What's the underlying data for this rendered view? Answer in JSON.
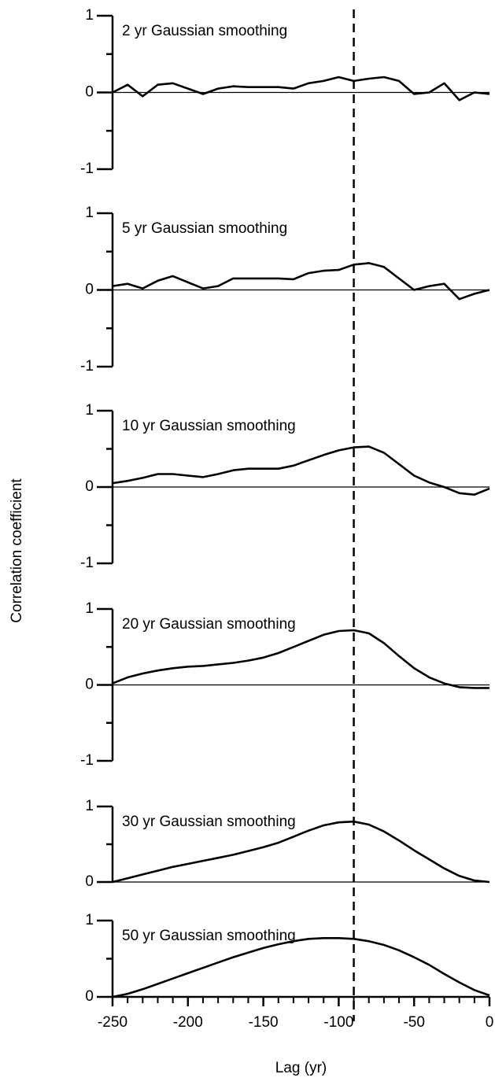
{
  "ylabel": "Correlation coefficient",
  "vline_x": -90,
  "chart_data": [
    {
      "type": "line",
      "title": "2 yr Gaussian smoothing",
      "color": "#000000",
      "x": [
        -250,
        -240,
        -230,
        -220,
        -210,
        -200,
        -190,
        -180,
        -170,
        -160,
        -150,
        -140,
        -130,
        -120,
        -110,
        -100,
        -90,
        -80,
        -70,
        -60,
        -50,
        -40,
        -30,
        -20,
        -10,
        0
      ],
      "values": [
        0,
        0.1,
        -0.05,
        0.1,
        0.12,
        0.05,
        -0.02,
        0.05,
        0.08,
        0.07,
        0.07,
        0.07,
        0.05,
        0.12,
        0.15,
        0.2,
        0.15,
        0.18,
        0.2,
        0.15,
        -0.02,
        0,
        0.12,
        -0.1,
        0,
        -0.02
      ],
      "xlim": [
        -250,
        0
      ],
      "ylim": [
        -1,
        1
      ],
      "yticks": [
        -1,
        0,
        1
      ],
      "yminor": [
        -0.5,
        0.5
      ]
    },
    {
      "type": "line",
      "title": "5 yr Gaussian smoothing",
      "color": "#000000",
      "x": [
        -250,
        -240,
        -230,
        -220,
        -210,
        -200,
        -190,
        -180,
        -170,
        -160,
        -150,
        -140,
        -130,
        -120,
        -110,
        -100,
        -90,
        -80,
        -70,
        -60,
        -50,
        -40,
        -30,
        -20,
        -10,
        0
      ],
      "values": [
        0.05,
        0.08,
        0.02,
        0.12,
        0.18,
        0.1,
        0.02,
        0.05,
        0.15,
        0.15,
        0.15,
        0.15,
        0.14,
        0.22,
        0.25,
        0.26,
        0.33,
        0.35,
        0.3,
        0.15,
        0,
        0.05,
        0.08,
        -0.12,
        -0.05,
        0
      ],
      "xlim": [
        -250,
        0
      ],
      "ylim": [
        -1,
        1
      ],
      "yticks": [
        -1,
        0,
        1
      ],
      "yminor": [
        -0.5,
        0.5
      ]
    },
    {
      "type": "line",
      "title": "10 yr Gaussian smoothing",
      "color": "#000000",
      "x": [
        -250,
        -240,
        -230,
        -220,
        -210,
        -200,
        -190,
        -180,
        -170,
        -160,
        -150,
        -140,
        -130,
        -120,
        -110,
        -100,
        -90,
        -80,
        -70,
        -60,
        -50,
        -40,
        -30,
        -20,
        -10,
        0
      ],
      "values": [
        0.05,
        0.08,
        0.12,
        0.17,
        0.17,
        0.15,
        0.13,
        0.17,
        0.22,
        0.24,
        0.24,
        0.24,
        0.28,
        0.35,
        0.42,
        0.48,
        0.52,
        0.53,
        0.45,
        0.3,
        0.15,
        0.06,
        0,
        -0.08,
        -0.1,
        -0.02
      ],
      "xlim": [
        -250,
        0
      ],
      "ylim": [
        -1,
        1
      ],
      "yticks": [
        -1,
        0,
        1
      ],
      "yminor": [
        -0.5,
        0.5
      ]
    },
    {
      "type": "line",
      "title": "20 yr Gaussian smoothing",
      "color": "#000000",
      "x": [
        -250,
        -240,
        -230,
        -220,
        -210,
        -200,
        -190,
        -180,
        -170,
        -160,
        -150,
        -140,
        -130,
        -120,
        -110,
        -100,
        -90,
        -80,
        -70,
        -60,
        -50,
        -40,
        -30,
        -20,
        -10,
        0
      ],
      "values": [
        0.02,
        0.1,
        0.15,
        0.19,
        0.22,
        0.24,
        0.25,
        0.27,
        0.29,
        0.32,
        0.36,
        0.42,
        0.5,
        0.58,
        0.66,
        0.71,
        0.72,
        0.68,
        0.55,
        0.38,
        0.22,
        0.1,
        0.02,
        -0.03,
        -0.04,
        -0.04
      ],
      "xlim": [
        -250,
        0
      ],
      "ylim": [
        -1,
        1
      ],
      "yticks": [
        -1,
        0,
        1
      ],
      "yminor": [
        -0.5,
        0.5
      ]
    },
    {
      "type": "line",
      "title": "30 yr Gaussian smoothing",
      "color": "#000000",
      "x": [
        -250,
        -240,
        -230,
        -220,
        -210,
        -200,
        -190,
        -180,
        -170,
        -160,
        -150,
        -140,
        -130,
        -120,
        -110,
        -100,
        -90,
        -80,
        -70,
        -60,
        -50,
        -40,
        -30,
        -20,
        -10,
        0
      ],
      "values": [
        0,
        0.05,
        0.1,
        0.15,
        0.2,
        0.24,
        0.28,
        0.32,
        0.36,
        0.41,
        0.46,
        0.52,
        0.6,
        0.68,
        0.75,
        0.79,
        0.8,
        0.76,
        0.67,
        0.55,
        0.42,
        0.3,
        0.18,
        0.08,
        0.02,
        0
      ],
      "xlim": [
        -250,
        0
      ],
      "ylim": [
        0,
        1
      ],
      "yticks": [
        0,
        1
      ],
      "yminor": [
        0.5
      ]
    },
    {
      "type": "line",
      "title": "50 yr Gaussian smoothing",
      "color": "#000000",
      "x": [
        -250,
        -240,
        -230,
        -220,
        -210,
        -200,
        -190,
        -180,
        -170,
        -160,
        -150,
        -140,
        -130,
        -120,
        -110,
        -100,
        -90,
        -80,
        -70,
        -60,
        -50,
        -40,
        -30,
        -20,
        -10,
        0
      ],
      "values": [
        0,
        0.04,
        0.1,
        0.17,
        0.24,
        0.31,
        0.38,
        0.45,
        0.52,
        0.58,
        0.64,
        0.69,
        0.73,
        0.76,
        0.77,
        0.77,
        0.76,
        0.73,
        0.68,
        0.61,
        0.52,
        0.42,
        0.3,
        0.19,
        0.09,
        0.02
      ],
      "xlim": [
        -250,
        0
      ],
      "ylim": [
        0,
        1
      ],
      "yticks": [
        0,
        1
      ],
      "yminor": [
        0.5
      ],
      "xticks": [
        -250,
        -200,
        -150,
        -100,
        -50,
        0
      ],
      "xminor": [
        -240,
        -230,
        -220,
        -210,
        -190,
        -180,
        -170,
        -160,
        -140,
        -130,
        -120,
        -110,
        -90,
        -80,
        -70,
        -60,
        -40,
        -30,
        -20,
        -10
      ],
      "xlabel": "Lag  (yr)"
    }
  ]
}
